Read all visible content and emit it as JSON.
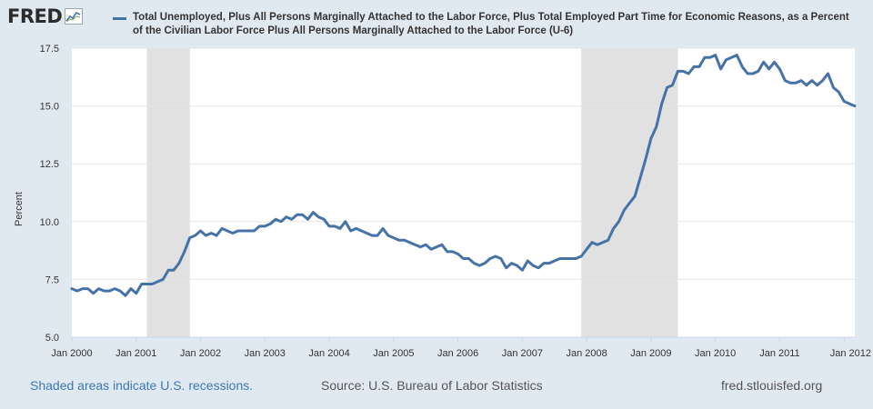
{
  "logo": {
    "text": "FRED",
    "icon": "fred-chart-icon"
  },
  "footer": {
    "recession_note": "Shaded areas indicate U.S. recessions.",
    "source": "Source: U.S. Bureau of Labor Statistics",
    "site": "fred.stlouisfed.org"
  },
  "colors": {
    "series": "#4572a7",
    "background": "#e1e9f0",
    "plot": "#ffffff",
    "recession": "#e1e1e1",
    "link": "#3d78b9"
  },
  "chart_data": {
    "type": "line",
    "title": "Total Unemployed, Plus All Persons Marginally Attached to the Labor Force, Plus Total Employed Part Time for Economic Reasons, as a Percent of the Civilian Labor Force Plus All Persons Marginally Attached to the Labor Force (U-6)",
    "ylabel": "Percent",
    "xlabel": "",
    "ylim": [
      5.0,
      17.5
    ],
    "yticks": [
      "5.0",
      "7.5",
      "10.0",
      "12.5",
      "15.0",
      "17.5"
    ],
    "ytick_values": [
      5.0,
      7.5,
      10.0,
      12.5,
      15.0,
      17.5
    ],
    "xticks": [
      "Jan 2000",
      "Jan 2001",
      "Jan 2002",
      "Jan 2003",
      "Jan 2004",
      "Jan 2005",
      "Jan 2006",
      "Jan 2007",
      "Jan 2008",
      "Jan 2009",
      "Jan 2010",
      "Jan 2011",
      "Jan 2012"
    ],
    "xtick_years": [
      2000,
      2001,
      2002,
      2003,
      2004,
      2005,
      2006,
      2007,
      2008,
      2009,
      2010,
      2011,
      2012
    ],
    "grid": true,
    "recessions": [
      {
        "start": "2001-03",
        "end": "2001-11"
      },
      {
        "start": "2007-12",
        "end": "2009-06"
      }
    ],
    "series": [
      {
        "name": "U-6",
        "start": "2000-01",
        "frequency": "monthly",
        "values": [
          7.1,
          7.0,
          7.1,
          7.1,
          6.9,
          7.1,
          7.0,
          7.0,
          7.1,
          7.0,
          6.8,
          7.1,
          6.9,
          7.3,
          7.3,
          7.3,
          7.4,
          7.5,
          7.9,
          7.9,
          8.2,
          8.7,
          9.3,
          9.4,
          9.6,
          9.4,
          9.5,
          9.4,
          9.7,
          9.6,
          9.5,
          9.6,
          9.6,
          9.6,
          9.6,
          9.8,
          9.8,
          9.9,
          10.1,
          10.0,
          10.2,
          10.1,
          10.3,
          10.3,
          10.1,
          10.4,
          10.2,
          10.1,
          9.8,
          9.8,
          9.7,
          10.0,
          9.6,
          9.7,
          9.6,
          9.5,
          9.4,
          9.4,
          9.7,
          9.4,
          9.3,
          9.2,
          9.2,
          9.1,
          9.0,
          8.9,
          9.0,
          8.8,
          8.9,
          9.0,
          8.7,
          8.7,
          8.6,
          8.4,
          8.4,
          8.2,
          8.1,
          8.2,
          8.4,
          8.5,
          8.4,
          8.0,
          8.2,
          8.1,
          7.9,
          8.3,
          8.1,
          8.0,
          8.2,
          8.2,
          8.3,
          8.4,
          8.4,
          8.4,
          8.4,
          8.5,
          8.8,
          9.1,
          9.0,
          9.1,
          9.2,
          9.7,
          10.0,
          10.5,
          10.8,
          11.1,
          11.9,
          12.7,
          13.6,
          14.1,
          15.1,
          15.8,
          15.9,
          16.5,
          16.5,
          16.4,
          16.7,
          16.7,
          17.1,
          17.1,
          17.2,
          16.6,
          17.0,
          17.1,
          17.2,
          16.7,
          16.4,
          16.4,
          16.5,
          16.9,
          16.6,
          16.9,
          16.6,
          16.1,
          16.0,
          16.0,
          16.1,
          15.9,
          16.1,
          15.9,
          16.1,
          16.4,
          15.8,
          15.6,
          15.2,
          15.1,
          15.0
        ]
      }
    ]
  }
}
